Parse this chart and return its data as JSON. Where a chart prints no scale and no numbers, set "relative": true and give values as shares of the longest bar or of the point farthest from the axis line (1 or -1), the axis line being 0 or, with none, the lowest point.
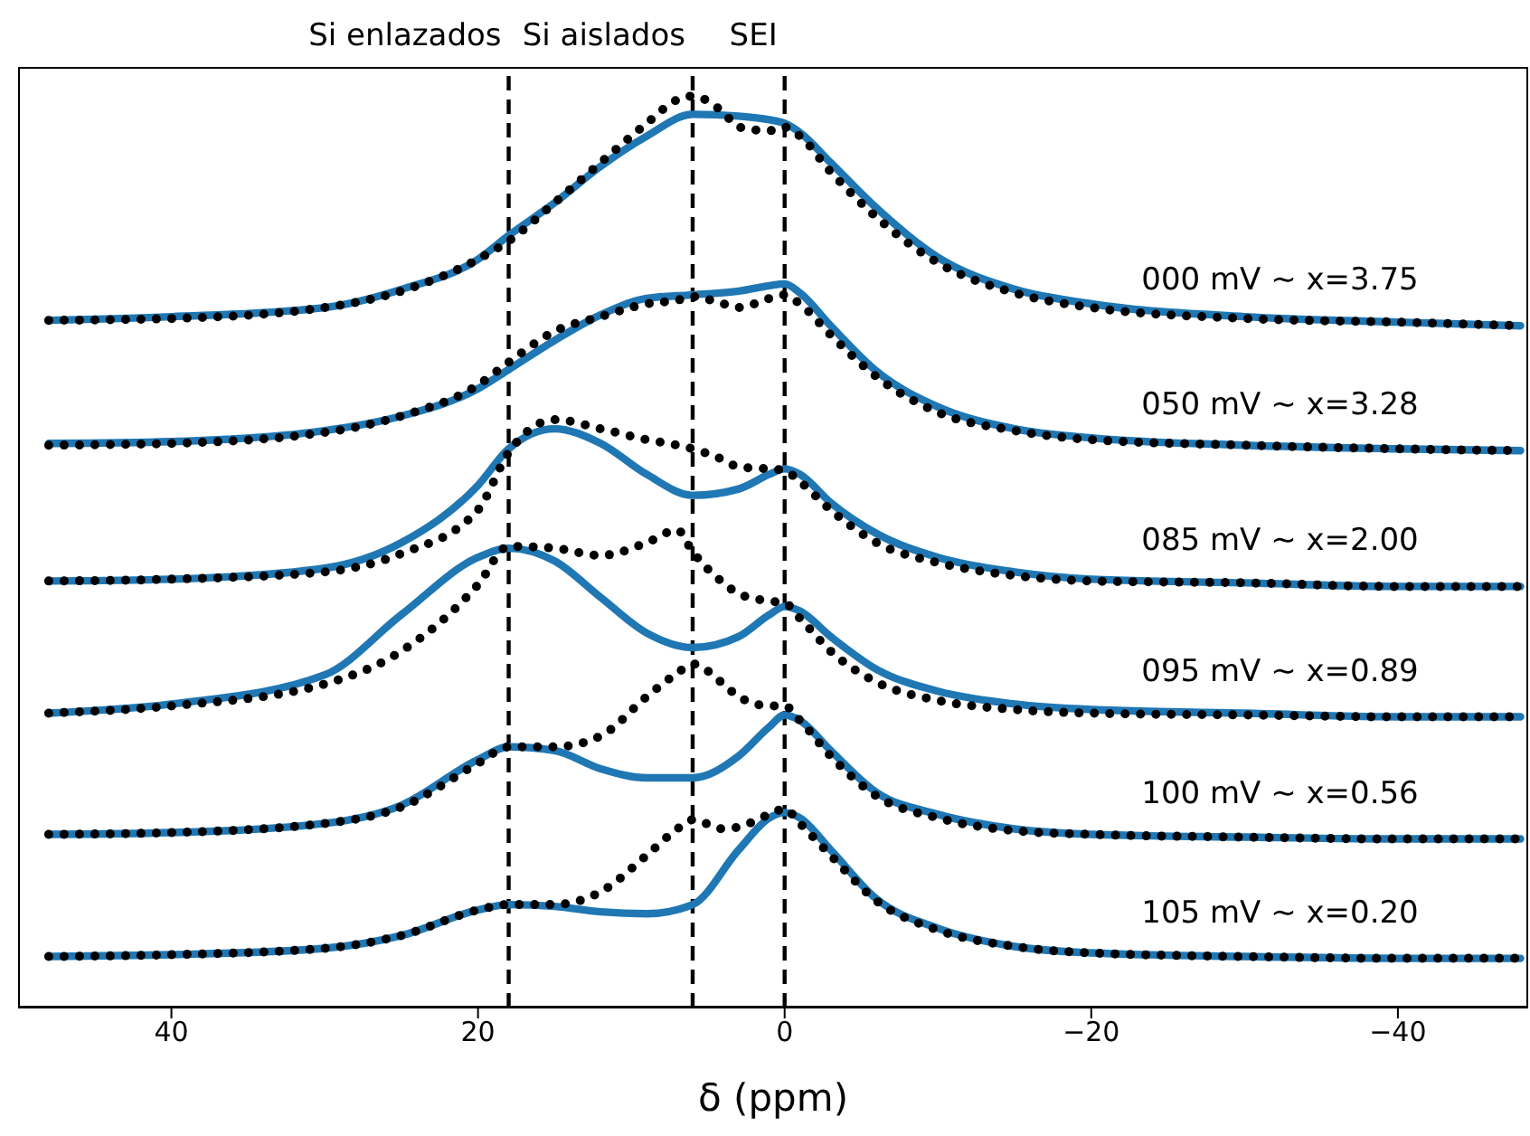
{
  "chart_data": {
    "type": "line",
    "relative": true,
    "xlabel": "δ (ppm)",
    "xlim": [
      50,
      -48.5
    ],
    "xticks": [
      40,
      20,
      0,
      -20,
      -40
    ],
    "marker": "none",
    "series": [
      {
        "color": "#1f77b4",
        "line_style": "solid",
        "x": [
          48,
          40,
          30,
          25,
          20,
          18,
          15,
          12,
          9,
          6,
          3,
          1,
          0,
          -1,
          -3,
          -6,
          -10,
          -15,
          -20,
          -30,
          -40,
          -48
        ],
        "values": [
          0.754,
          0.758,
          0.768,
          0.788,
          0.821,
          0.847,
          0.883,
          0.923,
          0.956,
          0.98,
          0.978,
          0.974,
          0.97,
          0.96,
          0.927,
          0.877,
          0.823,
          0.788,
          0.772,
          0.758,
          0.752,
          0.748
        ]
      },
      {
        "color": "#000000",
        "line_style": "dotted",
        "x": [
          48,
          40,
          30,
          25,
          20,
          18,
          15,
          12,
          9,
          7,
          6,
          4,
          3,
          1,
          0,
          -1,
          -3,
          -6,
          -10,
          -15,
          -20,
          -30,
          -40,
          -48
        ],
        "values": [
          0.754,
          0.756,
          0.768,
          0.786,
          0.821,
          0.841,
          0.883,
          0.927,
          0.97,
          0.996,
          1.0,
          0.982,
          0.966,
          0.962,
          0.966,
          0.956,
          0.917,
          0.867,
          0.817,
          0.784,
          0.768,
          0.756,
          0.752,
          0.748
        ]
      },
      {
        "color": "#1f77b4",
        "line_style": "solid",
        "x": [
          48,
          40,
          30,
          25,
          20,
          18,
          15,
          12,
          9,
          6,
          3,
          1,
          0,
          -1,
          -3,
          -6,
          -10,
          -15,
          -20,
          -30,
          -40,
          -48
        ],
        "values": [
          0.619,
          0.621,
          0.633,
          0.649,
          0.679,
          0.7,
          0.732,
          0.76,
          0.778,
          0.782,
          0.786,
          0.792,
          0.794,
          0.784,
          0.748,
          0.698,
          0.659,
          0.635,
          0.625,
          0.617,
          0.613,
          0.611
        ]
      },
      {
        "color": "#000000",
        "line_style": "dotted",
        "x": [
          48,
          40,
          30,
          25,
          20,
          18,
          15,
          12,
          9,
          7,
          6,
          4,
          3,
          1,
          0,
          -1,
          -3,
          -6,
          -10,
          -15,
          -20,
          -30,
          -40,
          -48
        ],
        "values": [
          0.617,
          0.619,
          0.631,
          0.649,
          0.683,
          0.708,
          0.742,
          0.758,
          0.772,
          0.776,
          0.78,
          0.772,
          0.768,
          0.778,
          0.782,
          0.772,
          0.738,
          0.692,
          0.653,
          0.633,
          0.623,
          0.617,
          0.613,
          0.611
        ]
      },
      {
        "color": "#1f77b4",
        "line_style": "solid",
        "x": [
          48,
          40,
          30,
          25,
          20,
          18,
          15,
          12,
          9,
          6,
          3,
          1,
          0,
          -1,
          -3,
          -6,
          -10,
          -15,
          -20,
          -30,
          -40,
          -48
        ],
        "values": [
          0.468,
          0.47,
          0.482,
          0.51,
          0.573,
          0.613,
          0.635,
          0.619,
          0.585,
          0.562,
          0.569,
          0.585,
          0.591,
          0.585,
          0.554,
          0.52,
          0.494,
          0.478,
          0.47,
          0.466,
          0.462,
          0.462
        ]
      },
      {
        "color": "#000000",
        "line_style": "dotted",
        "x": [
          48,
          40,
          30,
          25,
          20,
          18,
          15,
          12,
          9,
          7,
          6,
          4,
          3,
          1,
          0,
          -1,
          -3,
          -6,
          -10,
          -15,
          -20,
          -30,
          -40,
          -48
        ],
        "values": [
          0.468,
          0.47,
          0.478,
          0.498,
          0.546,
          0.609,
          0.645,
          0.635,
          0.623,
          0.617,
          0.613,
          0.601,
          0.593,
          0.591,
          0.589,
          0.577,
          0.546,
          0.51,
          0.488,
          0.474,
          0.468,
          0.466,
          0.462,
          0.462
        ]
      },
      {
        "color": "#1f77b4",
        "line_style": "solid",
        "x": [
          48,
          40,
          30,
          25,
          20,
          18,
          15,
          12,
          9,
          6,
          3,
          1,
          0,
          -1,
          -3,
          -6,
          -10,
          -15,
          -20,
          -30,
          -40,
          -48
        ],
        "values": [
          0.323,
          0.333,
          0.365,
          0.431,
          0.494,
          0.504,
          0.49,
          0.45,
          0.411,
          0.395,
          0.407,
          0.431,
          0.44,
          0.435,
          0.407,
          0.371,
          0.347,
          0.333,
          0.327,
          0.323,
          0.319,
          0.319
        ]
      },
      {
        "color": "#000000",
        "line_style": "dotted",
        "x": [
          48,
          40,
          30,
          25,
          20,
          18,
          15,
          12,
          9,
          7,
          6,
          4,
          3,
          1,
          0,
          -1,
          -3,
          -6,
          -10,
          -15,
          -20,
          -30,
          -40,
          -48
        ],
        "values": [
          0.323,
          0.331,
          0.355,
          0.391,
          0.464,
          0.506,
          0.504,
          0.496,
          0.51,
          0.524,
          0.5,
          0.466,
          0.454,
          0.446,
          0.444,
          0.427,
          0.391,
          0.357,
          0.337,
          0.327,
          0.323,
          0.321,
          0.319,
          0.319
        ]
      },
      {
        "color": "#1f77b4",
        "line_style": "solid",
        "x": [
          48,
          40,
          30,
          25,
          20,
          18,
          15,
          12,
          9,
          6,
          3,
          1,
          0,
          -1,
          -3,
          -6,
          -10,
          -15,
          -20,
          -30,
          -40,
          -48
        ],
        "values": [
          0.19,
          0.192,
          0.202,
          0.222,
          0.272,
          0.286,
          0.282,
          0.262,
          0.252,
          0.252,
          0.276,
          0.308,
          0.321,
          0.315,
          0.282,
          0.236,
          0.212,
          0.196,
          0.19,
          0.187,
          0.185,
          0.185
        ]
      },
      {
        "color": "#000000",
        "line_style": "dotted",
        "x": [
          48,
          40,
          30,
          25,
          20,
          18,
          15,
          12,
          9,
          7,
          6,
          4,
          3,
          1,
          0,
          -1,
          -3,
          -6,
          -10,
          -15,
          -20,
          -30,
          -40,
          -48
        ],
        "values": [
          0.19,
          0.192,
          0.202,
          0.22,
          0.268,
          0.286,
          0.286,
          0.298,
          0.341,
          0.367,
          0.377,
          0.355,
          0.341,
          0.331,
          0.331,
          0.315,
          0.276,
          0.232,
          0.208,
          0.194,
          0.19,
          0.187,
          0.185,
          0.185
        ]
      },
      {
        "color": "#1f77b4",
        "line_style": "solid",
        "x": [
          48,
          40,
          30,
          25,
          20,
          18,
          15,
          12,
          9,
          6,
          3,
          1,
          0,
          -1,
          -3,
          -6,
          -10,
          -15,
          -20,
          -30,
          -40,
          -48
        ],
        "values": [
          0.056,
          0.058,
          0.065,
          0.079,
          0.107,
          0.113,
          0.111,
          0.105,
          0.103,
          0.113,
          0.173,
          0.208,
          0.214,
          0.208,
          0.173,
          0.119,
          0.087,
          0.067,
          0.06,
          0.056,
          0.054,
          0.054
        ]
      },
      {
        "color": "#000000",
        "line_style": "dotted",
        "x": [
          48,
          40,
          30,
          25,
          20,
          18,
          15,
          12,
          9,
          7,
          6,
          4,
          3,
          1,
          0,
          -1,
          -3,
          -6,
          -10,
          -15,
          -20,
          -30,
          -40,
          -48
        ],
        "values": [
          0.056,
          0.058,
          0.065,
          0.079,
          0.107,
          0.113,
          0.113,
          0.127,
          0.167,
          0.196,
          0.206,
          0.196,
          0.198,
          0.212,
          0.218,
          0.202,
          0.167,
          0.117,
          0.085,
          0.067,
          0.06,
          0.056,
          0.054,
          0.054
        ]
      }
    ],
    "ref_lines": [
      {
        "axis": "x",
        "value": 18,
        "label": "Si enlazados",
        "color": "#000000",
        "line_style": "dashed"
      },
      {
        "axis": "x",
        "value": 6,
        "label": "Si aislados",
        "color": "#000000",
        "line_style": "dashed"
      },
      {
        "axis": "x",
        "value": 0,
        "label": "SEI",
        "color": "#000000",
        "line_style": "dashed"
      }
    ],
    "annotations": [
      "000 mV ~ x=3.75",
      "050 mV ~ x=3.28",
      "085 mV ~ x=2.00",
      "095 mV ~ x=0.89",
      "100 mV ~ x=0.56",
      "105 mV ~ x=0.20"
    ]
  }
}
